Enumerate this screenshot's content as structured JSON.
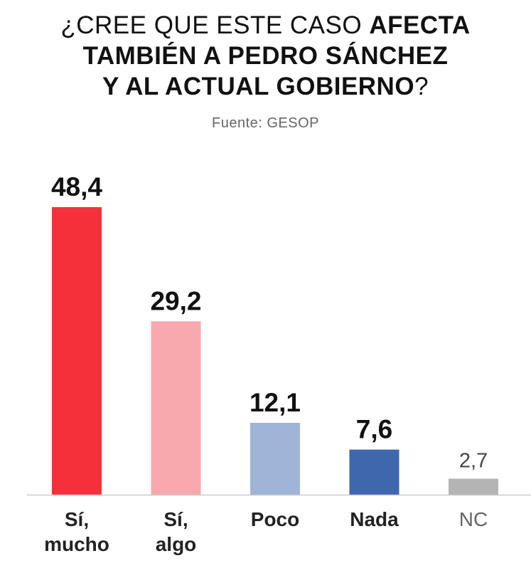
{
  "title": {
    "part1": "¿CREE QUE ESTE CASO ",
    "part2": "AFECTA",
    "part3": "TAMBIÉN A PEDRO SÁNCHEZ",
    "part4": "Y AL ACTUAL GOBIERNO",
    "part5": "?"
  },
  "source": "Fuente: GESOP",
  "chart_data": {
    "type": "bar",
    "title": "¿CREE QUE ESTE CASO AFECTA TAMBIÉN A PEDRO SÁNCHEZ Y AL ACTUAL GOBIERNO?",
    "categories": [
      "Sí, mucho",
      "Sí, algo",
      "Poco",
      "Nada",
      "NC"
    ],
    "values": [
      48.4,
      29.2,
      12.1,
      7.6,
      2.7
    ],
    "value_labels": [
      "48,4",
      "29,2",
      "12,1",
      "7,6",
      "2,7"
    ],
    "colors": [
      "#f5303a",
      "#f8a9ad",
      "#9fb4d6",
      "#3f67ae",
      "#b4b4b4"
    ],
    "label_colors": [
      "#111111",
      "#111111",
      "#111111",
      "#111111",
      "#444444"
    ],
    "label_bold": [
      true,
      true,
      true,
      true,
      false
    ],
    "xlabel": "",
    "ylabel": "",
    "grid": false,
    "legend": "none"
  }
}
